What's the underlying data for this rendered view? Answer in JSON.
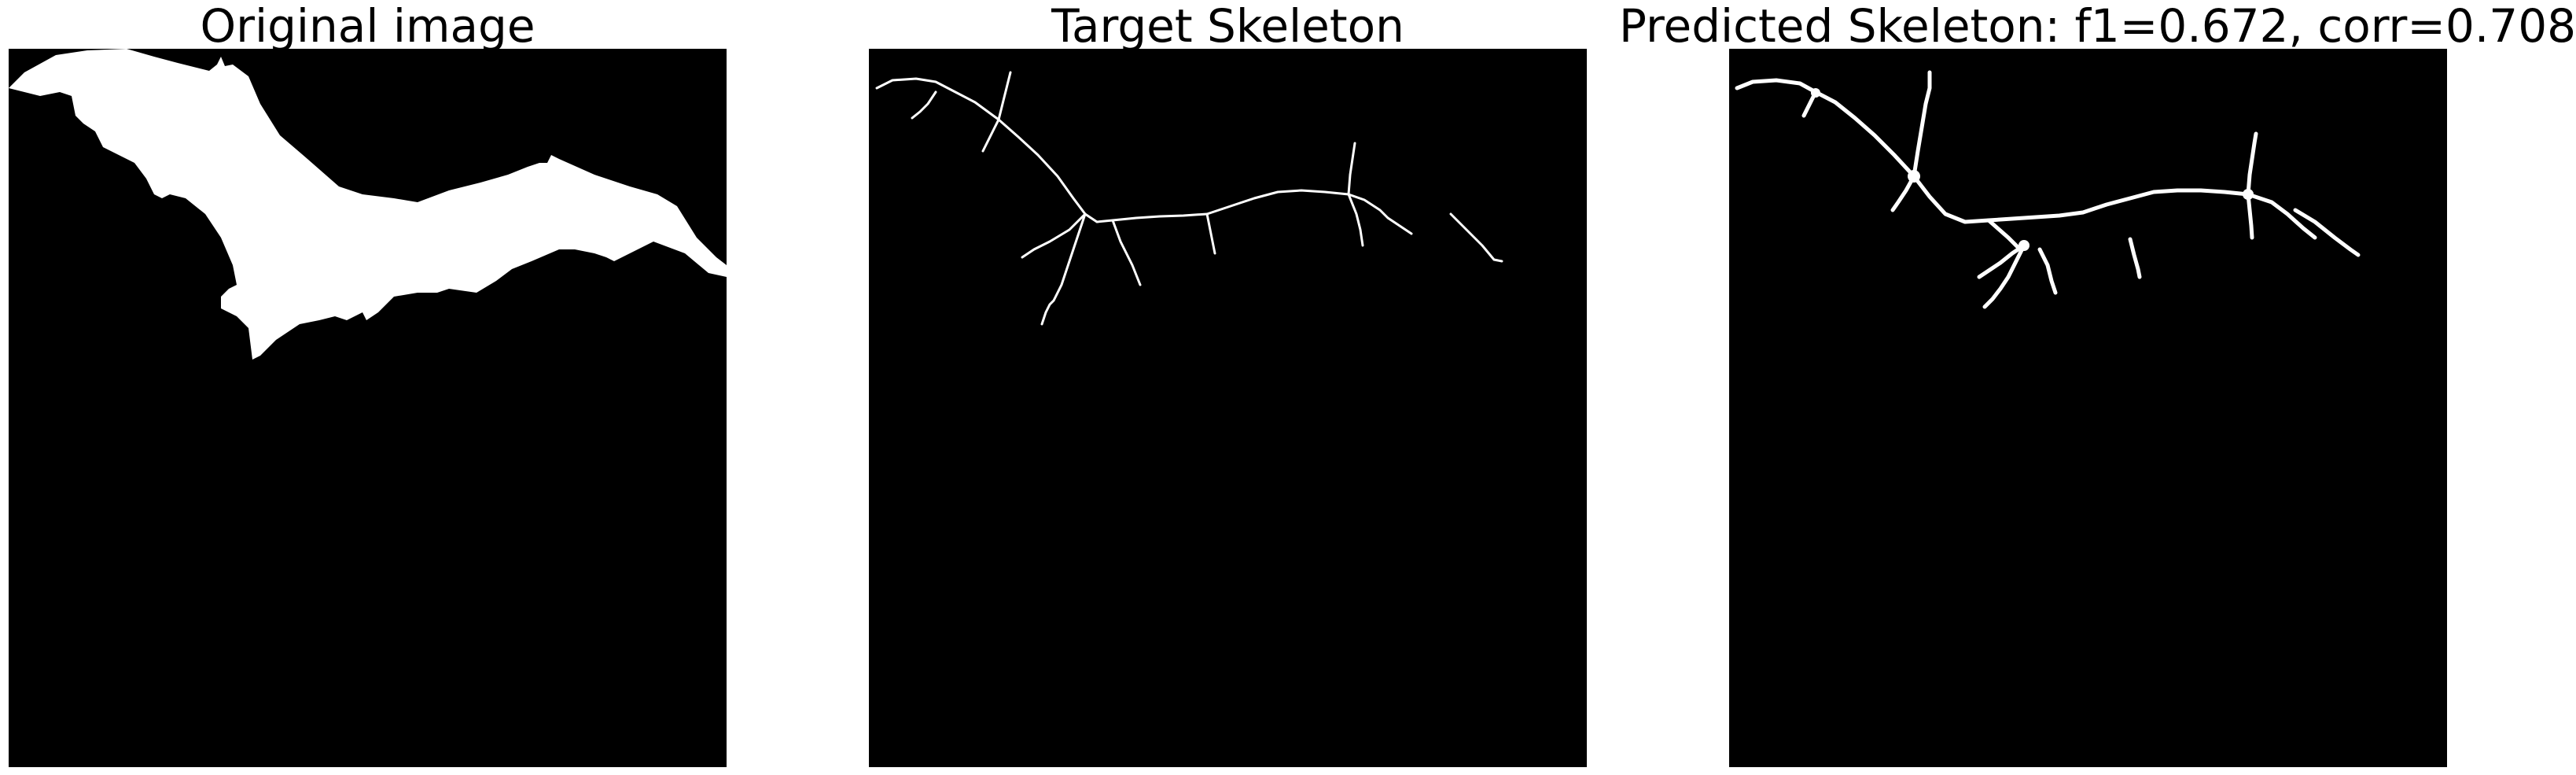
{
  "panels": [
    {
      "title": "Original image"
    },
    {
      "title": "Target Skeleton"
    },
    {
      "title": "Predicted Skeleton: f1=0.672, corr=0.708"
    }
  ],
  "colors": {
    "background": "#000000",
    "foreground": "#ffffff",
    "page": "#ffffff"
  }
}
